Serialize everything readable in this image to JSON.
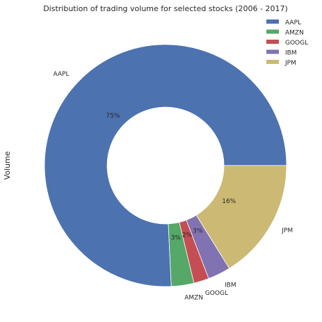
{
  "chart_data": {
    "type": "pie",
    "variant": "donut",
    "title": "Distribution of trading volume for selected stocks (2006 - 2017)",
    "ylabel": "Volume",
    "legend_position": "top-right",
    "slices": [
      {
        "label": "AAPL",
        "percent": 75,
        "pct_label": "75%",
        "color": "#4c72b0"
      },
      {
        "label": "AMZN",
        "percent": 3,
        "pct_label": "3%",
        "color": "#55a868"
      },
      {
        "label": "GOOGL",
        "percent": 2,
        "pct_label": "2%",
        "color": "#c44e52"
      },
      {
        "label": "IBM",
        "percent": 3,
        "pct_label": "3%",
        "color": "#8172b2"
      },
      {
        "label": "JPM",
        "percent": 16,
        "pct_label": "16%",
        "color": "#ccb974"
      }
    ]
  }
}
